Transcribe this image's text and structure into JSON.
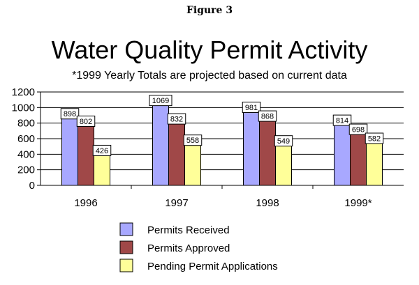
{
  "figure_label": "Figure 3",
  "chart_data": {
    "type": "bar",
    "title": "Water Quality Permit Activity",
    "subtitle": "*1999 Yearly Totals are projected based on current data",
    "categories": [
      "1996",
      "1997",
      "1998",
      "1999*"
    ],
    "series": [
      {
        "name": "Permits Received",
        "color": "#a8a8ff",
        "values": [
          898,
          1069,
          981,
          814
        ]
      },
      {
        "name": "Permits Approved",
        "color": "#a04848",
        "values": [
          802,
          832,
          868,
          698
        ]
      },
      {
        "name": "Pending Permit Applications",
        "color": "#ffff99",
        "values": [
          426,
          558,
          549,
          582
        ]
      }
    ],
    "ylim": [
      0,
      1200
    ],
    "yticks": [
      0,
      200,
      400,
      600,
      800,
      1000,
      1200
    ],
    "grid": true,
    "legend_placement": "bottom"
  }
}
